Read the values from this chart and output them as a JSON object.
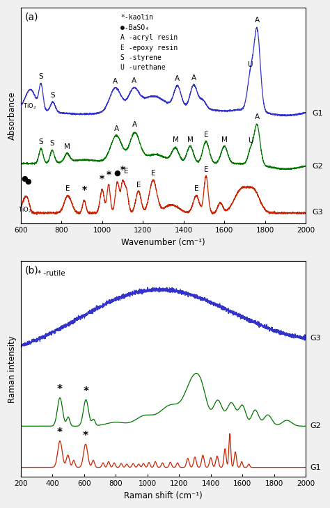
{
  "fig_width": 4.74,
  "fig_height": 7.3,
  "dpi": 100,
  "bg_color": "#f0f0f0",
  "panel_a": {
    "xlabel": "Wavenumber (cm⁻¹)",
    "ylabel": "Absorbance",
    "xlim": [
      600,
      2000
    ],
    "xticks": [
      600,
      800,
      1000,
      1200,
      1400,
      1600,
      1800,
      2000
    ],
    "panel_label": "(a)",
    "G1_color": "#3333cc",
    "G2_color": "#007700",
    "G3_color": "#cc2200",
    "legend_text": "*-kaolin\n●-BaSO₄\nA -acryl resin\nE -epoxy resin\nS -styrene\nU -urethane"
  },
  "panel_b": {
    "xlabel": "Raman shift (cm⁻¹)",
    "ylabel": "Raman intensity",
    "xlim": [
      200,
      2000
    ],
    "xticks": [
      200,
      400,
      600,
      800,
      1000,
      1200,
      1400,
      1600,
      1800,
      2000
    ],
    "panel_label": "(b)",
    "G1_color": "#cc2200",
    "G2_color": "#007700",
    "G3_color": "#3333cc",
    "legend_text": "* -rutile"
  }
}
